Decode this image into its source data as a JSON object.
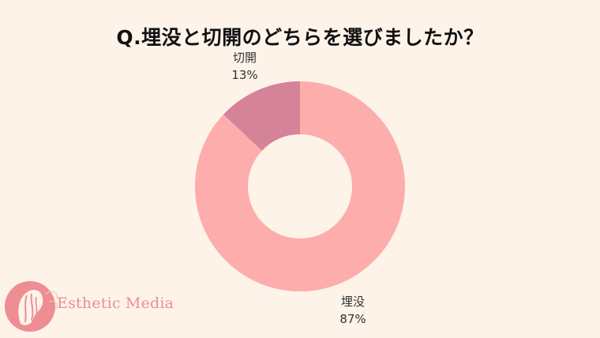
{
  "chart_data": {
    "type": "pie",
    "title": "Q.埋没と切開のどちらを選びましたか？",
    "slices": [
      {
        "label": "埋没",
        "value": 87,
        "value_label": "87%",
        "color": "#fdadab"
      },
      {
        "label": "切開",
        "value": 13,
        "value_label": "13%",
        "color": "#d48399"
      }
    ]
  },
  "logo": {
    "text": "Esthetic Media",
    "color": "#ee8d92"
  }
}
